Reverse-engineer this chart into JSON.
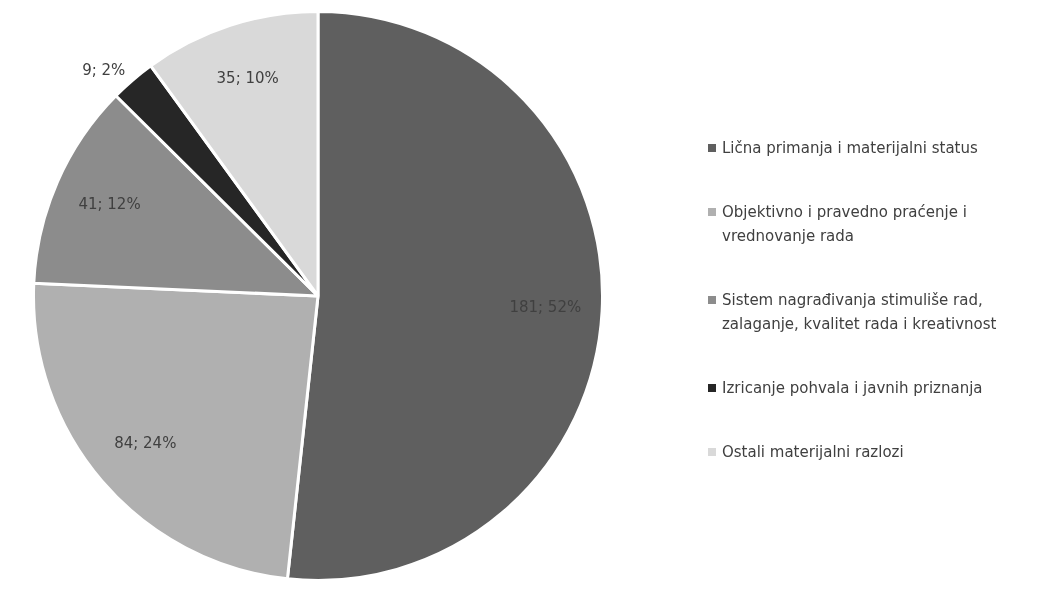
{
  "chart_data": {
    "type": "pie",
    "categories": [
      "Lična primanja i materijalni status",
      "Objektivno i pravedno praćenje i vrednovanje rada",
      "Sistem nagrađivanja stimuliše rad, zalaganje, kvalitet rada i kreativnost",
      "Izricanje pohvala i javnih priznanja",
      "Ostali materijalni razlozi"
    ],
    "values": [
      181,
      84,
      41,
      9,
      35
    ],
    "colors": [
      "#5f5f5f",
      "#b0b0b0",
      "#8c8c8c",
      "#262626",
      "#d9d9d9"
    ],
    "value_labels": [
      "181; 52%",
      "84; 24%",
      "41; 12%",
      "9; 2%",
      "35; 10%"
    ],
    "legend": "right"
  }
}
